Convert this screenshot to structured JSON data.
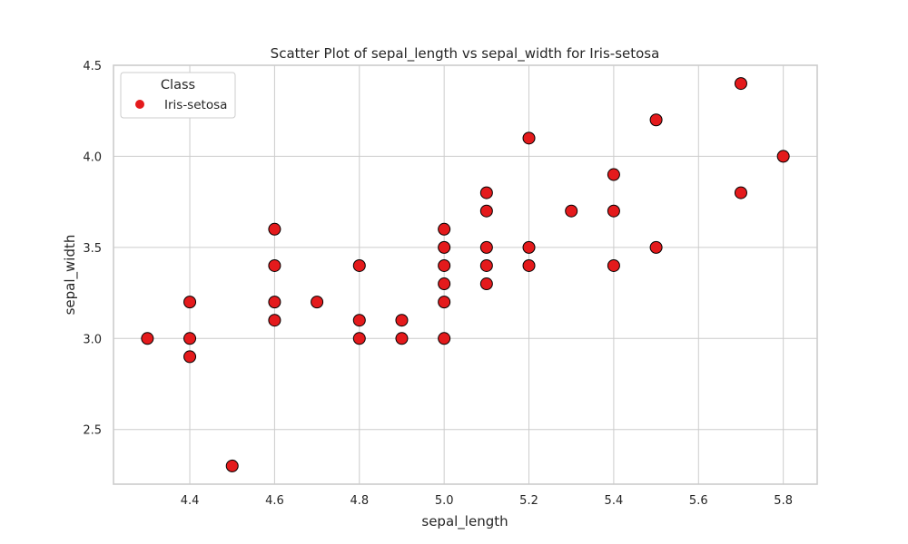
{
  "chart_data": {
    "type": "scatter",
    "title": "Scatter Plot of sepal_length vs sepal_width for Iris-setosa",
    "xlabel": "sepal_length",
    "ylabel": "sepal_width",
    "xlim": [
      4.22,
      5.88
    ],
    "ylim": [
      2.2,
      4.5
    ],
    "xticks": [
      "4.4",
      "4.6",
      "4.8",
      "5.0",
      "5.2",
      "5.4",
      "5.6",
      "5.8"
    ],
    "yticks": [
      "2.5",
      "3.0",
      "3.5",
      "4.0",
      "4.5"
    ],
    "grid": true,
    "legend": {
      "title": "Class",
      "placement": "top-left"
    },
    "series": [
      {
        "name": "Iris-setosa",
        "color": "#e41a1c",
        "edge_color": "#000000",
        "points": [
          [
            4.3,
            3.0
          ],
          [
            4.4,
            3.2
          ],
          [
            4.4,
            3.0
          ],
          [
            4.4,
            2.9
          ],
          [
            4.5,
            2.3
          ],
          [
            4.6,
            3.6
          ],
          [
            4.6,
            3.4
          ],
          [
            4.6,
            3.2
          ],
          [
            4.6,
            3.1
          ],
          [
            4.7,
            3.2
          ],
          [
            4.8,
            3.4
          ],
          [
            4.8,
            3.1
          ],
          [
            4.8,
            3.0
          ],
          [
            4.9,
            3.1
          ],
          [
            4.9,
            3.0
          ],
          [
            5.0,
            3.6
          ],
          [
            5.0,
            3.5
          ],
          [
            5.0,
            3.4
          ],
          [
            5.0,
            3.3
          ],
          [
            5.0,
            3.2
          ],
          [
            5.0,
            3.0
          ],
          [
            5.1,
            3.8
          ],
          [
            5.1,
            3.7
          ],
          [
            5.1,
            3.5
          ],
          [
            5.1,
            3.4
          ],
          [
            5.1,
            3.3
          ],
          [
            5.2,
            4.1
          ],
          [
            5.2,
            3.5
          ],
          [
            5.2,
            3.4
          ],
          [
            5.3,
            3.7
          ],
          [
            5.4,
            3.9
          ],
          [
            5.4,
            3.7
          ],
          [
            5.4,
            3.4
          ],
          [
            5.5,
            4.2
          ],
          [
            5.5,
            3.5
          ],
          [
            5.7,
            4.4
          ],
          [
            5.7,
            3.8
          ],
          [
            5.8,
            4.0
          ]
        ]
      }
    ]
  }
}
